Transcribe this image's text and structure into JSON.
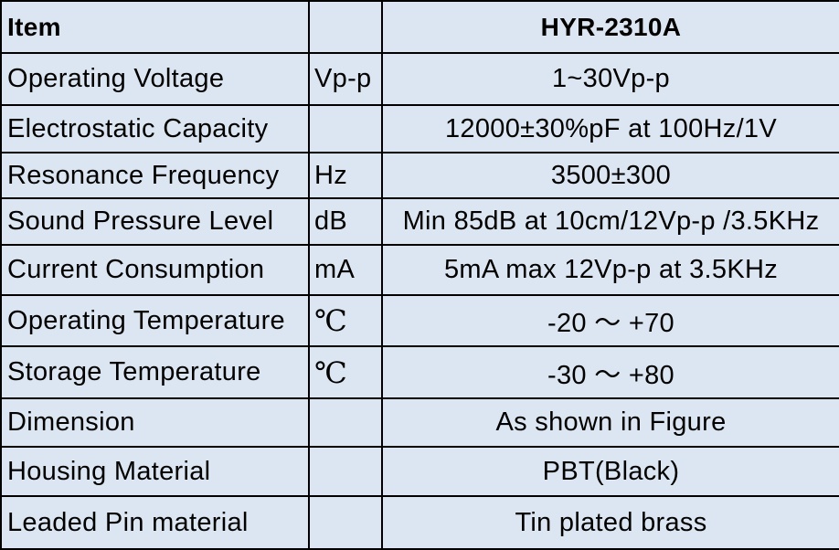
{
  "header": {
    "item": "Item",
    "unit": "",
    "model": "HYR-2310A"
  },
  "rows": [
    {
      "item": "Operating Voltage",
      "unit": "Vp-p",
      "value": "1~30Vp-p"
    },
    {
      "item": "Electrostatic Capacity",
      "unit": "",
      "value": "12000±30%pF at 100Hz/1V"
    },
    {
      "item": "Resonance Frequency",
      "unit": "Hz",
      "value": "3500±300"
    },
    {
      "item": "Sound Pressure Level",
      "unit": "dB",
      "value": "Min 85dB at 10cm/12Vp-p /3.5KHz"
    },
    {
      "item": "Current Consumption",
      "unit": "mA",
      "value": "5mA max 12Vp-p at 3.5KHz"
    },
    {
      "item": "Operating Temperature",
      "unit": "℃",
      "value": "-20 ～ +70"
    },
    {
      "item": "Storage Temperature",
      "unit": "℃",
      "value": "-30 ～ +80"
    },
    {
      "item": "Dimension",
      "unit": "",
      "value": "As shown in Figure"
    },
    {
      "item": "Housing Material",
      "unit": "",
      "value": "PBT(Black)"
    },
    {
      "item": "Leaded Pin material",
      "unit": "",
      "value": "Tin plated brass"
    }
  ],
  "colors": {
    "cell_background": "#DCE6F2",
    "grid_lines": "#000000"
  }
}
